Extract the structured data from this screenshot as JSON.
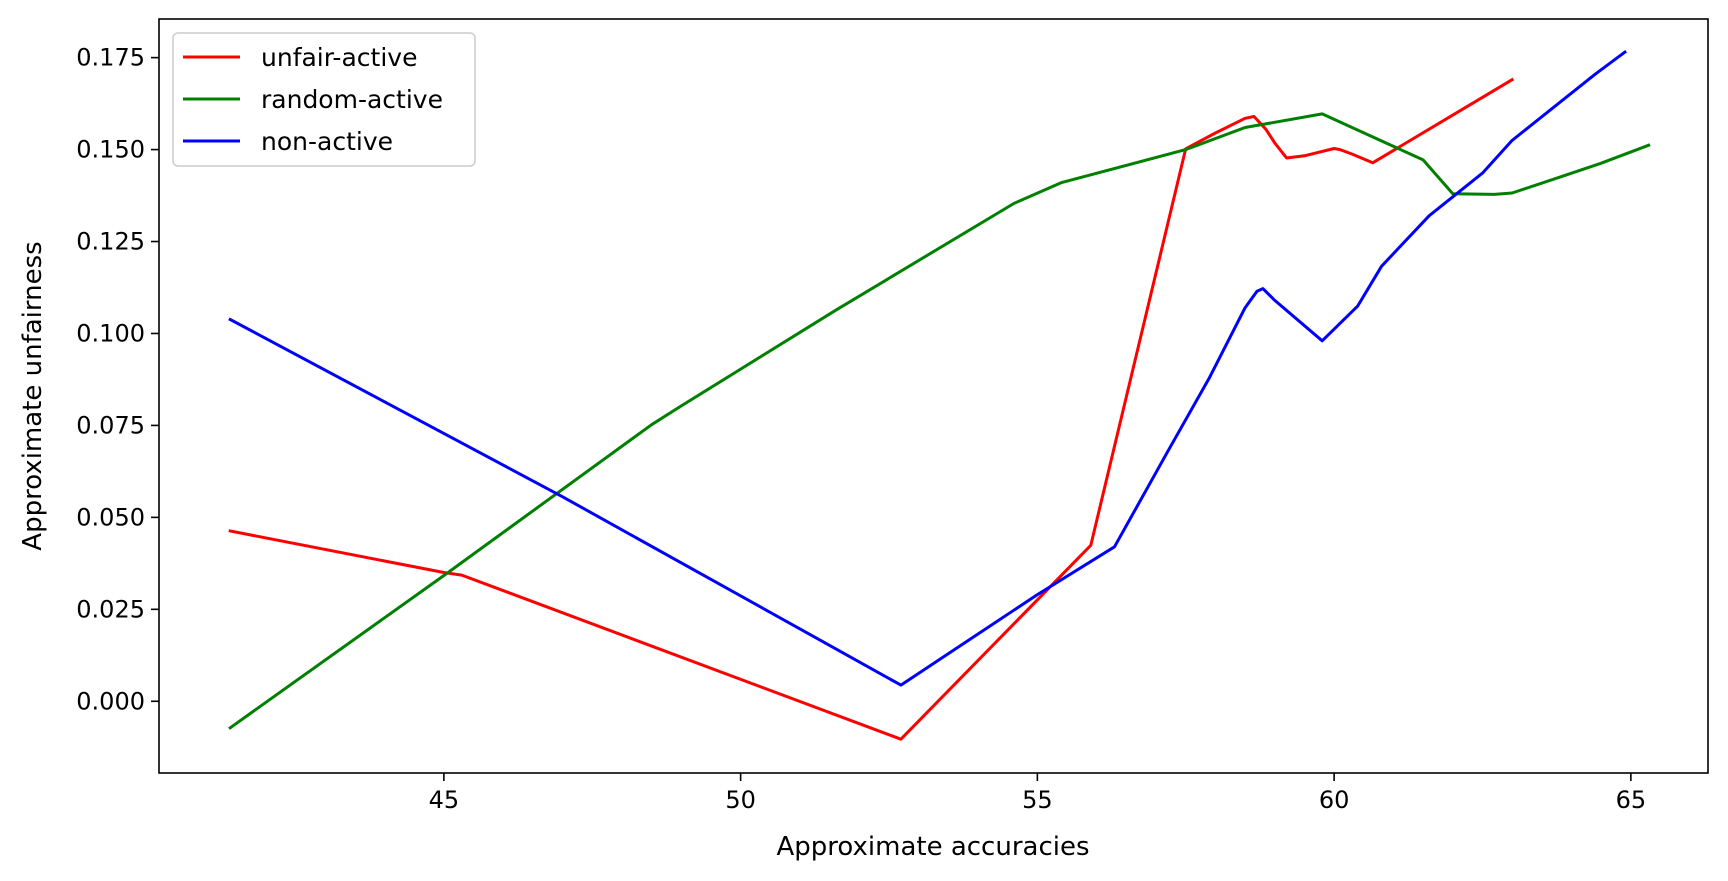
{
  "chart_data": {
    "type": "line",
    "xlabel": "Approximate accuracies",
    "ylabel": "Approximate unfairness",
    "xlim": [
      40.2,
      66.3
    ],
    "ylim": [
      -0.0195,
      0.1855
    ],
    "xticks": [
      45,
      50,
      55,
      60,
      65
    ],
    "xtick_labels": [
      "45",
      "50",
      "55",
      "60",
      "65"
    ],
    "yticks": [
      0.0,
      0.025,
      0.05,
      0.075,
      0.1,
      0.125,
      0.15,
      0.175
    ],
    "ytick_labels": [
      "0.000",
      "0.025",
      "0.050",
      "0.075",
      "0.100",
      "0.125",
      "0.150",
      "0.175"
    ],
    "grid": false,
    "legend_position": "upper-left",
    "series": [
      {
        "name": "unfair-active",
        "color": "#ff0000",
        "x": [
          41.4,
          45.0,
          45.3,
          52.7,
          55.9,
          57.5,
          58.0,
          58.5,
          58.65,
          58.85,
          59.0,
          59.2,
          59.5,
          60.0,
          60.1,
          60.3,
          60.65,
          63.0
        ],
        "y": [
          0.0463,
          0.035,
          0.0343,
          -0.0103,
          0.0424,
          0.1502,
          0.1545,
          0.1585,
          0.159,
          0.1555,
          0.1518,
          0.1477,
          0.1483,
          0.1503,
          0.15,
          0.1488,
          0.1464,
          0.169
        ]
      },
      {
        "name": "random-active",
        "color": "#008000",
        "x": [
          41.4,
          45.0,
          48.5,
          49.0,
          51.6,
          54.6,
          55.4,
          57.5,
          58.5,
          59.8,
          61.5,
          62.0,
          62.7,
          63.0,
          63.8,
          64.5,
          65.3
        ],
        "y": [
          -0.0072,
          0.0342,
          0.0752,
          0.0803,
          0.1063,
          0.1353,
          0.141,
          0.15,
          0.156,
          0.1597,
          0.1472,
          0.138,
          0.1378,
          0.1382,
          0.1425,
          0.1463,
          0.1512
        ]
      },
      {
        "name": "non-active",
        "color": "#0000ff",
        "x": [
          41.4,
          47.0,
          52.7,
          55.0,
          56.3,
          57.2,
          57.9,
          58.5,
          58.7,
          58.8,
          59.0,
          59.8,
          60.4,
          60.8,
          61.6,
          62.5,
          63.0,
          64.4,
          64.9
        ],
        "y": [
          0.1038,
          0.0556,
          0.0044,
          0.029,
          0.042,
          0.068,
          0.088,
          0.107,
          0.1115,
          0.1122,
          0.109,
          0.098,
          0.1075,
          0.1183,
          0.132,
          0.1436,
          0.1525,
          0.1705,
          0.1765
        ]
      }
    ]
  }
}
